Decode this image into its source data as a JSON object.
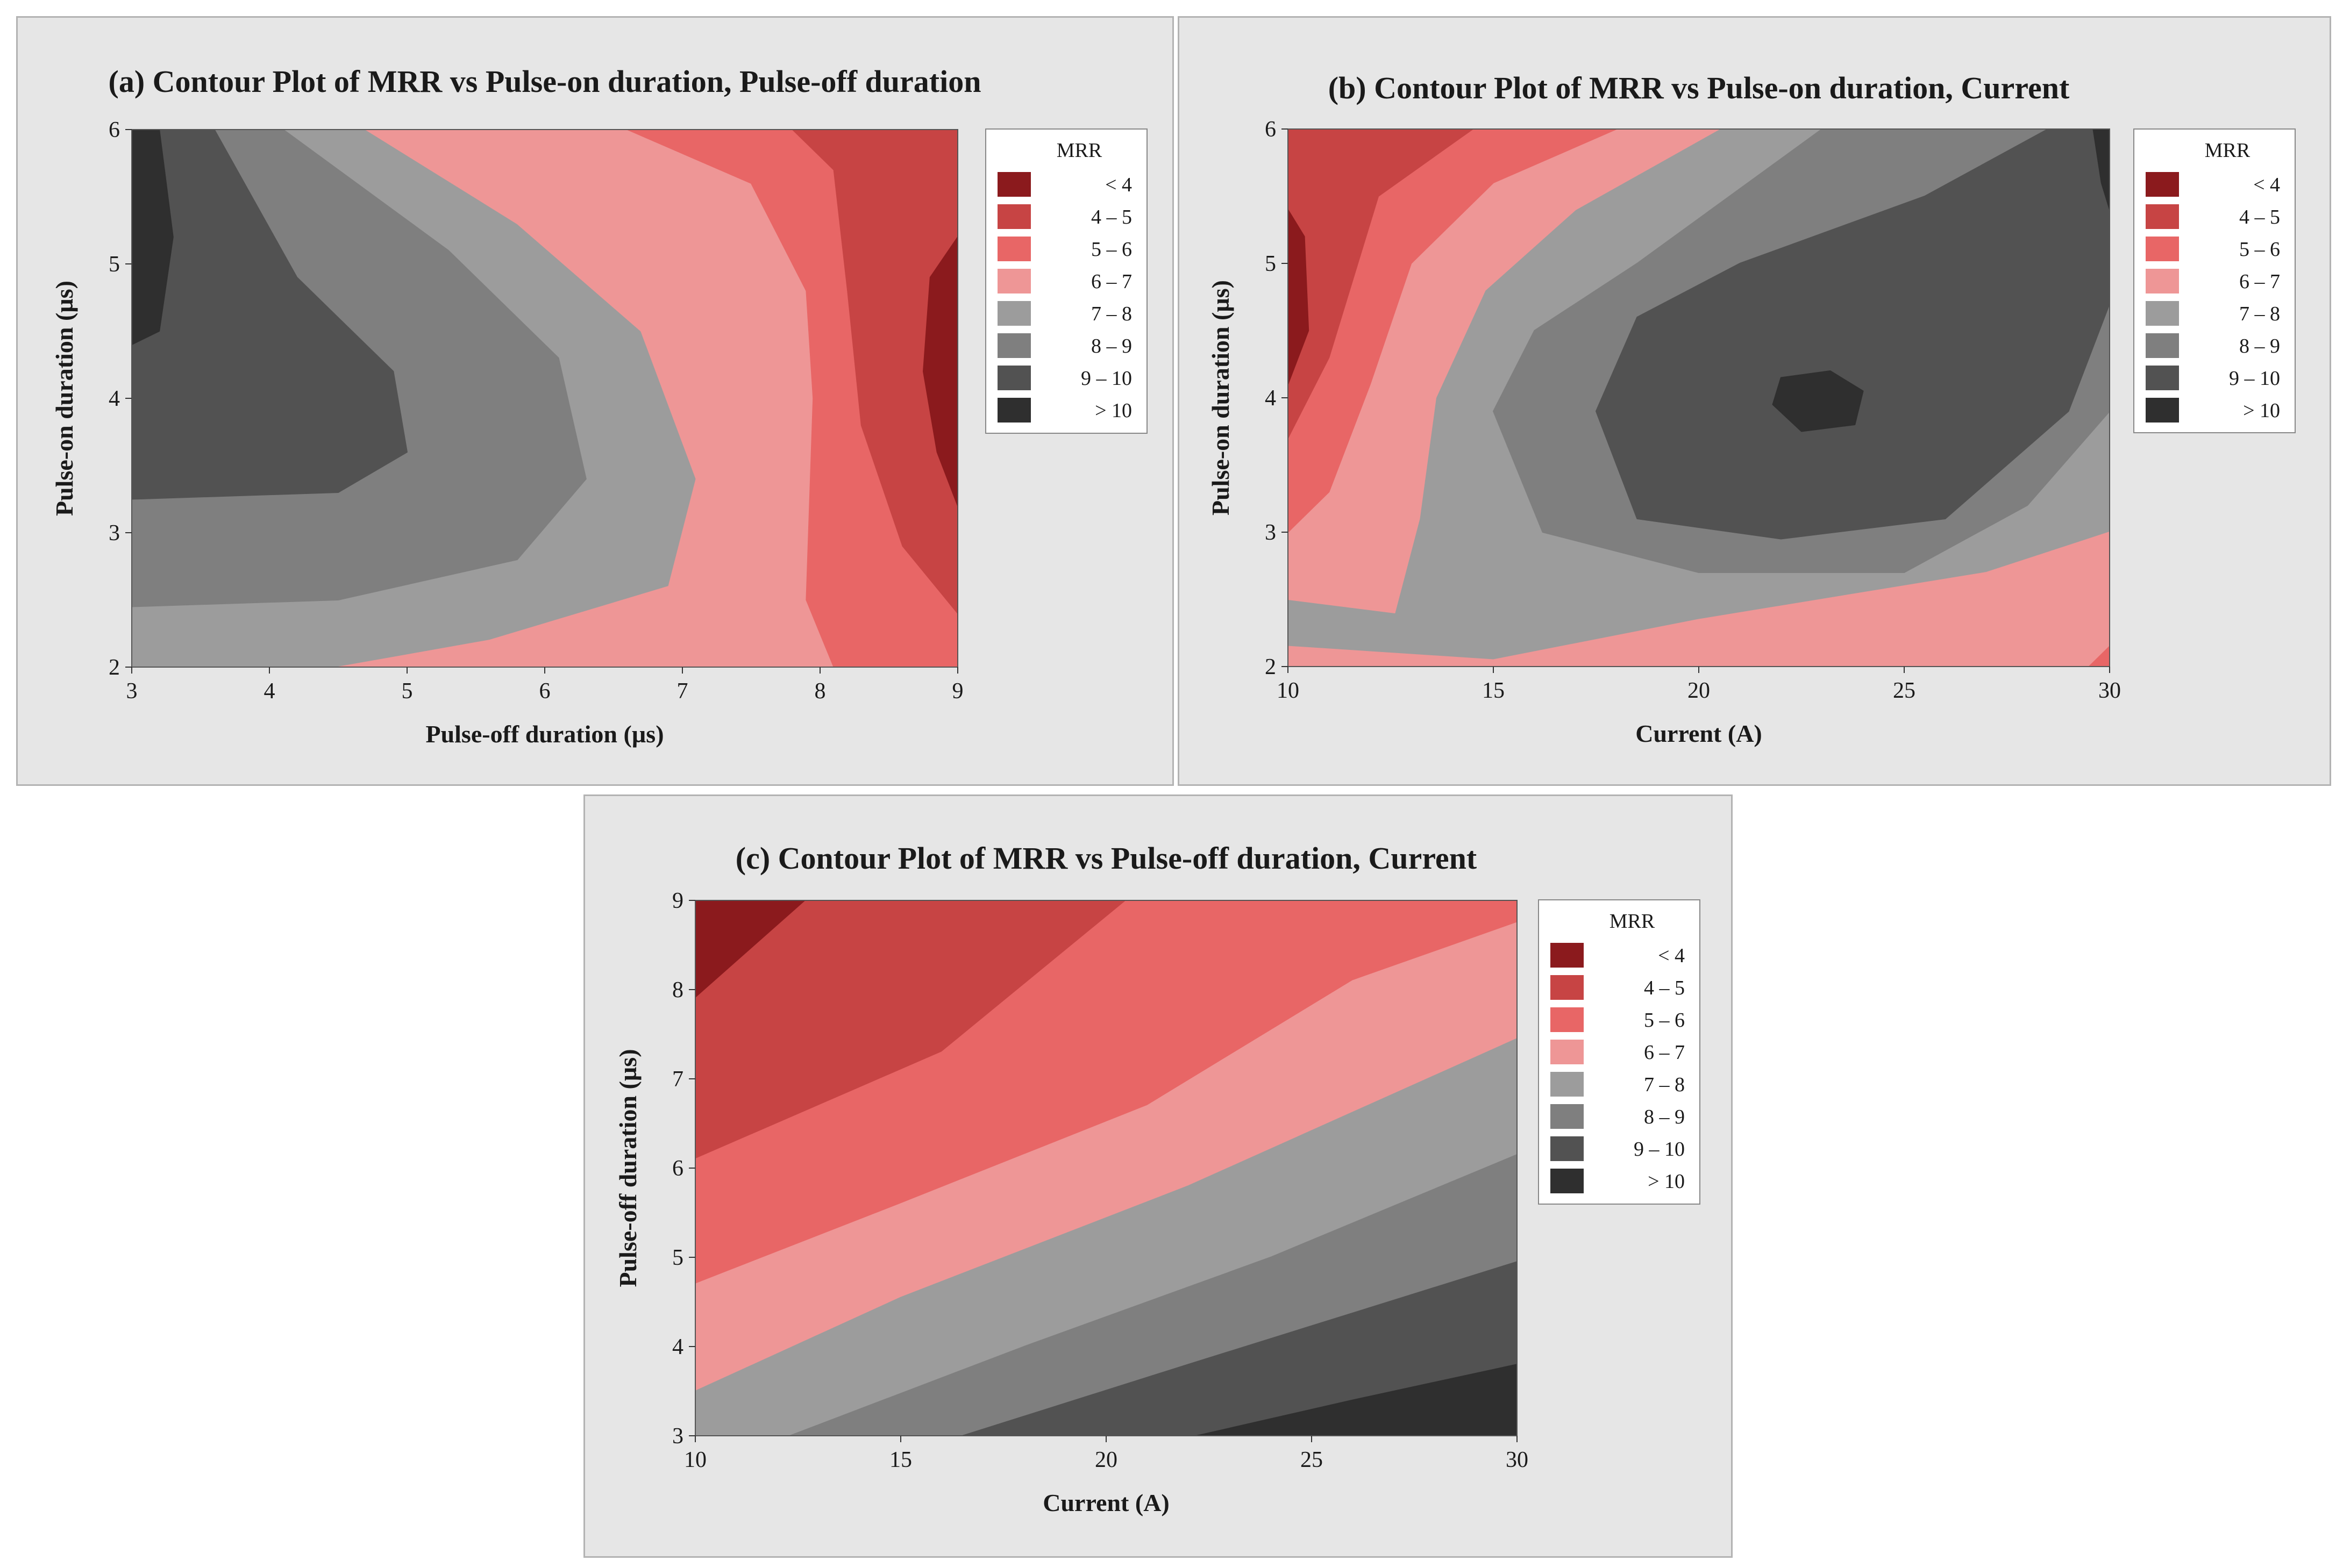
{
  "figure": {
    "legend_title": "MRR",
    "legend_entries": [
      {
        "label": "<  4",
        "color": "#8b1a1d"
      },
      {
        "label": "4 –  5",
        "color": "#c74444"
      },
      {
        "label": "5 –  6",
        "color": "#e86666"
      },
      {
        "label": "6 –  7",
        "color": "#ee9696"
      },
      {
        "label": "7 –  8",
        "color": "#9c9c9c"
      },
      {
        "label": "8 –  9",
        "color": "#7f7f7f"
      },
      {
        "label": "9 – 10",
        "color": "#525252"
      },
      {
        "label": ">  10",
        "color": "#2f2f2f"
      }
    ]
  },
  "chart_data": [
    {
      "type": "contour",
      "id": "a",
      "title": "(a) Contour Plot of MRR vs Pulse-on duration, Pulse-off duration",
      "xlabel": "Pulse-off duration (µs)",
      "ylabel": "Pulse-on duration (µs)",
      "xlim": [
        3,
        9
      ],
      "ylim": [
        2,
        6
      ],
      "xticks": [
        "3",
        "4",
        "5",
        "6",
        "7",
        "8",
        "9"
      ],
      "yticks": [
        "2",
        "3",
        "4",
        "5",
        "6"
      ],
      "z_label": "MRR",
      "bands": [
        {
          "level": "7 – 8",
          "color": "#9c9c9c",
          "points": [
            [
              3,
              2
            ],
            [
              9,
              2
            ],
            [
              9,
              6
            ],
            [
              3,
              6
            ]
          ]
        },
        {
          "level": "6 – 7",
          "color": "#ee9696",
          "points": [
            [
              4.5,
              2
            ],
            [
              9,
              2
            ],
            [
              9,
              6
            ],
            [
              4.7,
              6
            ],
            [
              5.8,
              5.3
            ],
            [
              6.7,
              4.5
            ],
            [
              7.1,
              3.4
            ],
            [
              6.9,
              2.6
            ],
            [
              5.6,
              2.2
            ]
          ]
        },
        {
          "level": "5 – 6",
          "color": "#e86666",
          "points": [
            [
              8.1,
              2
            ],
            [
              9,
              2
            ],
            [
              9,
              6
            ],
            [
              6.6,
              6
            ],
            [
              7.5,
              5.6
            ],
            [
              7.9,
              4.8
            ],
            [
              7.95,
              4.0
            ],
            [
              7.9,
              2.5
            ]
          ]
        },
        {
          "level": "4 – 5",
          "color": "#c74444",
          "points": [
            [
              9,
              2.4
            ],
            [
              9,
              6
            ],
            [
              7.8,
              6
            ],
            [
              8.1,
              5.7
            ],
            [
              8.2,
              4.8
            ],
            [
              8.3,
              3.8
            ],
            [
              8.6,
              2.9
            ]
          ]
        },
        {
          "level": "< 4",
          "color": "#8b1a1d",
          "points": [
            [
              9,
              3.2
            ],
            [
              9,
              5.2
            ],
            [
              8.8,
              4.9
            ],
            [
              8.75,
              4.2
            ],
            [
              8.85,
              3.6
            ]
          ]
        },
        {
          "level": "8 – 9",
          "color": "#7f7f7f",
          "points": [
            [
              3,
              2.45
            ],
            [
              4.5,
              2.5
            ],
            [
              5.8,
              2.8
            ],
            [
              6.3,
              3.4
            ],
            [
              6.1,
              4.3
            ],
            [
              5.3,
              5.1
            ],
            [
              4.1,
              6
            ],
            [
              3,
              6
            ]
          ]
        },
        {
          "level": "9 – 10",
          "color": "#525252",
          "points": [
            [
              3,
              3.25
            ],
            [
              4.5,
              3.3
            ],
            [
              5,
              3.6
            ],
            [
              4.9,
              4.2
            ],
            [
              4.2,
              4.9
            ],
            [
              3.6,
              6
            ],
            [
              3,
              6
            ]
          ]
        },
        {
          "level": "> 10",
          "color": "#2f2f2f",
          "points": [
            [
              3,
              4.4
            ],
            [
              3.2,
              4.5
            ],
            [
              3.3,
              5.2
            ],
            [
              3.2,
              6
            ],
            [
              3,
              6
            ]
          ]
        }
      ]
    },
    {
      "type": "contour",
      "id": "b",
      "title": "(b) Contour Plot of MRR vs Pulse-on duration, Current",
      "xlabel": "Current (A)",
      "ylabel": "Pulse-on duration (µs)",
      "xlim": [
        10,
        30
      ],
      "ylim": [
        2,
        6
      ],
      "xticks": [
        "10",
        "15",
        "20",
        "25",
        "30"
      ],
      "yticks": [
        "2",
        "3",
        "4",
        "5",
        "6"
      ],
      "z_label": "MRR",
      "bands": [
        {
          "level": "7 – 8",
          "color": "#9c9c9c",
          "points": [
            [
              10,
              2
            ],
            [
              30,
              2
            ],
            [
              30,
              6
            ],
            [
              10,
              6
            ]
          ]
        },
        {
          "level": "6 – 7",
          "color": "#ee9696",
          "points": [
            [
              10,
              2
            ],
            [
              15,
              2
            ],
            [
              30,
              2
            ],
            [
              30,
              3.0
            ],
            [
              27,
              2.7
            ],
            [
              20,
              2.35
            ],
            [
              15,
              2.05
            ],
            [
              12.5,
              2.1
            ],
            [
              10,
              2.15
            ]
          ]
        },
        {
          "level": "6 – 7 (upper)",
          "color": "#ee9696",
          "points": [
            [
              10,
              2.5
            ],
            [
              12.6,
              2.4
            ],
            [
              13.2,
              3.1
            ],
            [
              13.6,
              4.0
            ],
            [
              14.8,
              4.8
            ],
            [
              17,
              5.4
            ],
            [
              20.5,
              6
            ],
            [
              10,
              6
            ]
          ]
        },
        {
          "level": "5 – 6",
          "color": "#e86666",
          "points": [
            [
              10,
              3
            ],
            [
              11,
              3.3
            ],
            [
              12,
              4.1
            ],
            [
              13,
              5
            ],
            [
              15,
              5.6
            ],
            [
              18,
              6
            ],
            [
              10,
              6
            ]
          ]
        },
        {
          "level": "5 – 6 (corner)",
          "color": "#e86666",
          "points": [
            [
              29.5,
              2
            ],
            [
              30,
              2
            ],
            [
              30,
              2.15
            ]
          ]
        },
        {
          "level": "4 – 5",
          "color": "#c74444",
          "points": [
            [
              10,
              3.7
            ],
            [
              11,
              4.3
            ],
            [
              12.2,
              5.5
            ],
            [
              14.5,
              6
            ],
            [
              10,
              6
            ]
          ]
        },
        {
          "level": "< 4",
          "color": "#8b1a1d",
          "points": [
            [
              10,
              4.1
            ],
            [
              10.5,
              4.5
            ],
            [
              10.4,
              5.2
            ],
            [
              10,
              5.4
            ]
          ]
        },
        {
          "level": "8 – 9",
          "color": "#7f7f7f",
          "points": [
            [
              15,
              3.9
            ],
            [
              16.2,
              3.0
            ],
            [
              20,
              2.7
            ],
            [
              25,
              2.7
            ],
            [
              28,
              3.2
            ],
            [
              30,
              3.9
            ],
            [
              30,
              6
            ],
            [
              23,
              6
            ],
            [
              18.5,
              5.0
            ],
            [
              16,
              4.5
            ]
          ]
        },
        {
          "level": "9 – 10",
          "color": "#525252",
          "points": [
            [
              17.5,
              3.9
            ],
            [
              18.5,
              3.1
            ],
            [
              22,
              2.95
            ],
            [
              26,
              3.1
            ],
            [
              29,
              3.9
            ],
            [
              30,
              4.7
            ],
            [
              30,
              6
            ],
            [
              28.5,
              6
            ],
            [
              25.5,
              5.5
            ],
            [
              21,
              5.0
            ],
            [
              18.5,
              4.6
            ]
          ]
        },
        {
          "level": "> 10",
          "color": "#2f2f2f",
          "points": [
            [
              21.8,
              3.95
            ],
            [
              22.5,
              3.75
            ],
            [
              23.8,
              3.8
            ],
            [
              24,
              4.05
            ],
            [
              23.2,
              4.2
            ],
            [
              22,
              4.15
            ]
          ]
        },
        {
          "level": "> 10 (corner)",
          "color": "#2f2f2f",
          "points": [
            [
              29.6,
              6
            ],
            [
              30,
              6
            ],
            [
              30,
              5.4
            ],
            [
              29.8,
              5.6
            ]
          ]
        }
      ]
    },
    {
      "type": "contour",
      "id": "c",
      "title": "(c) Contour Plot of MRR vs Pulse-off duration, Current",
      "xlabel": "Current (A)",
      "ylabel": "Pulse-off duration (µs)",
      "xlim": [
        10,
        30
      ],
      "ylim": [
        3,
        9
      ],
      "xticks": [
        "10",
        "15",
        "20",
        "25",
        "30"
      ],
      "yticks": [
        "3",
        "4",
        "5",
        "6",
        "7",
        "8",
        "9"
      ],
      "z_label": "MRR",
      "bands": [
        {
          "level": "< 4",
          "color": "#8b1a1d",
          "points": [
            [
              10,
              3
            ],
            [
              30,
              3
            ],
            [
              30,
              9
            ],
            [
              10,
              9
            ]
          ]
        },
        {
          "level": "4 – 5",
          "color": "#c74444",
          "points": [
            [
              10,
              7.9
            ],
            [
              12.7,
              9
            ],
            [
              30,
              9
            ],
            [
              30,
              3
            ],
            [
              10,
              3
            ]
          ]
        },
        {
          "level": "5 – 6",
          "color": "#e86666",
          "points": [
            [
              10,
              6.1
            ],
            [
              16,
              7.3
            ],
            [
              20.5,
              9
            ],
            [
              30,
              9
            ],
            [
              30,
              3
            ],
            [
              10,
              3
            ]
          ]
        },
        {
          "level": "6 – 7",
          "color": "#ee9696",
          "points": [
            [
              10,
              4.7
            ],
            [
              15,
              5.6
            ],
            [
              21,
              6.7
            ],
            [
              26,
              8.1
            ],
            [
              30,
              8.75
            ],
            [
              30,
              3
            ],
            [
              10,
              3
            ]
          ]
        },
        {
          "level": "7 – 8",
          "color": "#9c9c9c",
          "points": [
            [
              10,
              3.5
            ],
            [
              15,
              4.55
            ],
            [
              22,
              5.8
            ],
            [
              30,
              7.45
            ],
            [
              30,
              3
            ],
            [
              10,
              3
            ]
          ]
        },
        {
          "level": "8 – 9",
          "color": "#7f7f7f",
          "points": [
            [
              12.3,
              3
            ],
            [
              18,
              4.0
            ],
            [
              24,
              5.0
            ],
            [
              30,
              6.15
            ],
            [
              30,
              3
            ]
          ]
        },
        {
          "level": "9 – 10",
          "color": "#525252",
          "points": [
            [
              16.5,
              3
            ],
            [
              22,
              3.8
            ],
            [
              30,
              4.95
            ],
            [
              30,
              3
            ]
          ]
        },
        {
          "level": "> 10",
          "color": "#2f2f2f",
          "points": [
            [
              22.2,
              3
            ],
            [
              26,
              3.4
            ],
            [
              30,
              3.8
            ],
            [
              30,
              3
            ]
          ]
        }
      ]
    }
  ]
}
